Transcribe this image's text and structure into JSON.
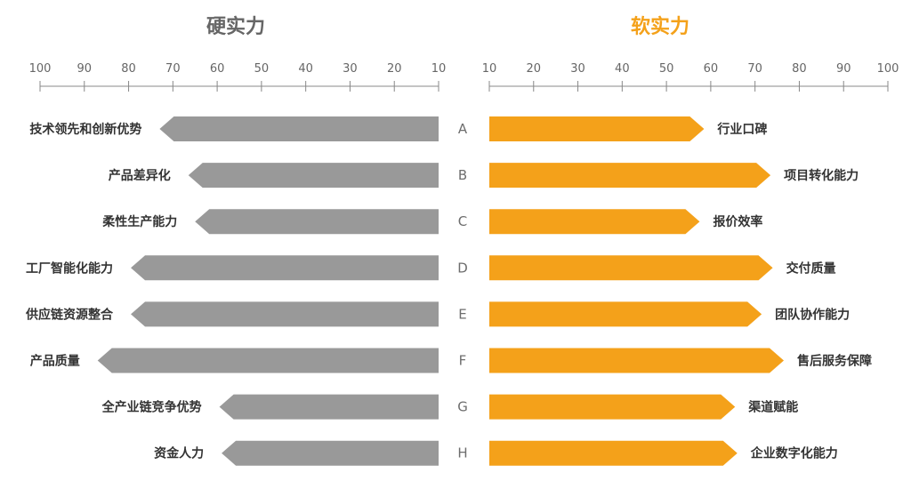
{
  "chart_data": {
    "type": "bar",
    "categories": [
      "A",
      "B",
      "C",
      "D",
      "E",
      "F",
      "G",
      "H"
    ],
    "panels": [
      {
        "title": "硬实力",
        "orientation": "reversed",
        "ticks": [
          100,
          90,
          80,
          70,
          60,
          50,
          40,
          30,
          20,
          10
        ],
        "xlim": [
          10,
          100
        ],
        "color": "#999999",
        "title_color": "#666666",
        "labels": [
          "技术领先和创新优势",
          "产品差异化",
          "柔性生产能力",
          "工厂智能化能力",
          "供应链资源整合",
          "产品质量",
          "全产业链竞争优势",
          "资金人力"
        ],
        "values": [
          73,
          66.5,
          65,
          79.5,
          79.5,
          87,
          59.5,
          59
        ]
      },
      {
        "title": "软实力",
        "orientation": "normal",
        "ticks": [
          10,
          20,
          30,
          40,
          50,
          60,
          70,
          80,
          90,
          100
        ],
        "xlim": [
          10,
          100
        ],
        "color": "#f4a11a",
        "title_color": "#f4a11a",
        "labels": [
          "行业口碑",
          "项目转化能力",
          "报价效率",
          "交付质量",
          "团队协作能力",
          "售后服务保障",
          "渠道赋能",
          "企业数字化能力"
        ],
        "values": [
          58.5,
          73.5,
          57.5,
          74,
          71.5,
          76.5,
          65.5,
          66
        ]
      }
    ]
  }
}
